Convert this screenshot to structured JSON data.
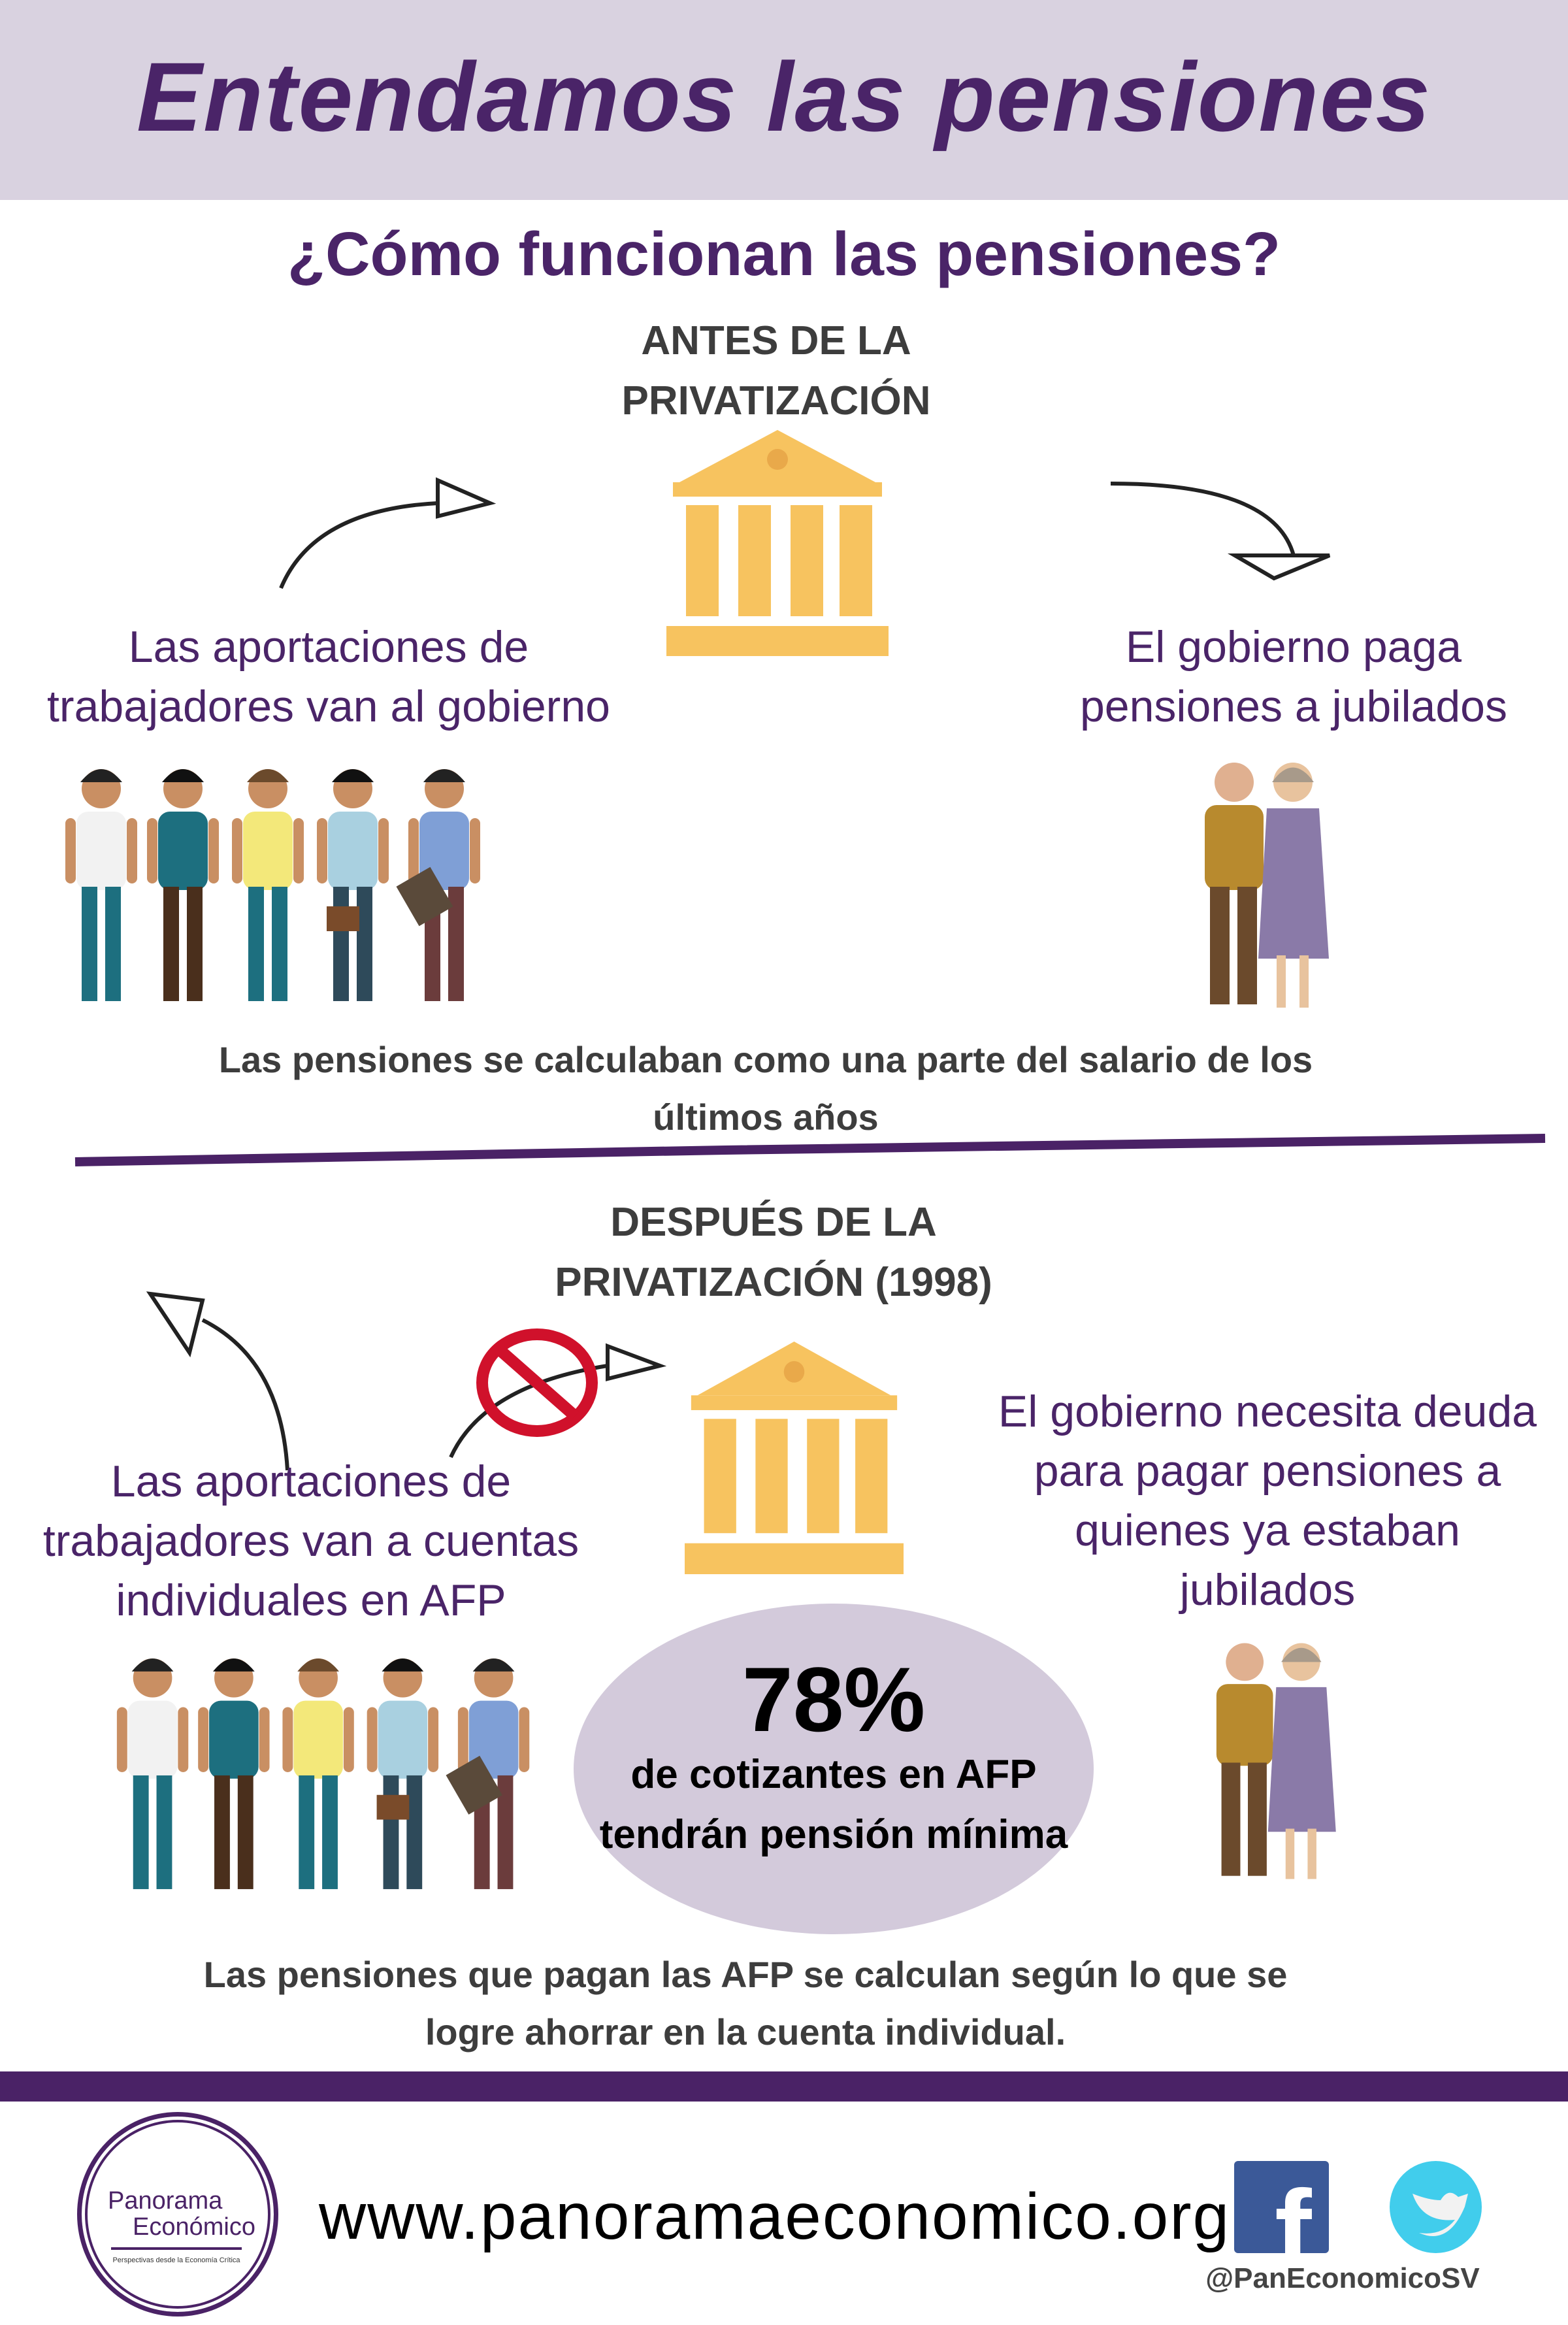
{
  "header": {
    "title": "Entendamos las pensiones"
  },
  "subtitle": "¿Cómo funcionan las pensiones?",
  "before": {
    "heading": [
      "ANTES DE LA",
      "PRIVATIZACIÓN"
    ],
    "left_text": [
      "Las aportaciones de",
      "trabajadores van al gobierno"
    ],
    "right_text": [
      "El gobierno paga",
      "pensiones a jubilados"
    ],
    "note": [
      "Las pensiones se calculaban como una parte del salario de los",
      "últimos años"
    ]
  },
  "after": {
    "heading": [
      "DESPUÉS  DE LA",
      "PRIVATIZACIÓN (1998)"
    ],
    "left_text": [
      "Las aportaciones de",
      "trabajadores van a cuentas",
      "individuales en AFP"
    ],
    "right_text": [
      "El gobierno necesita deuda",
      "para pagar pensiones a",
      "quienes ya estaban",
      "jubilados"
    ],
    "stat": {
      "value": "78%",
      "lines": [
        "de cotizantes en AFP",
        "tendrán pensión mínima"
      ]
    },
    "note": [
      "Las pensiones que pagan las AFP  se calculan según lo que se",
      "logre ahorrar en la cuenta individual."
    ]
  },
  "footer": {
    "logo": {
      "name1": "Panorama",
      "name2": "Económico",
      "tagline": "Perspectivas desde la Economía Crítica"
    },
    "url": "www.panoramaeconomico.org",
    "handle": "@PanEconomicoSV",
    "icons": [
      "facebook-icon",
      "twitter-icon"
    ]
  },
  "colors": {
    "purple": "#4a2468",
    "lavender": "#d9d2e0",
    "gold": "#f7c35f",
    "facebook": "#3b5998",
    "twitter": "#41cdec"
  }
}
